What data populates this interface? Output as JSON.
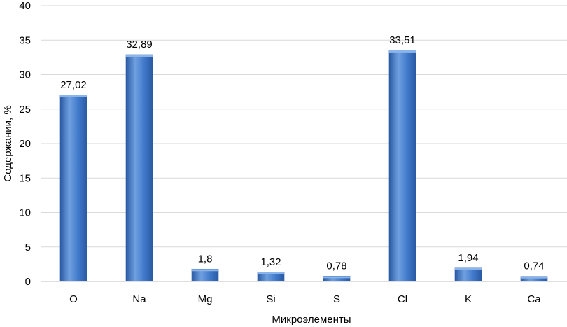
{
  "chart_data": {
    "type": "bar",
    "categories": [
      "O",
      "Na",
      "Mg",
      "Si",
      "S",
      "Cl",
      "K",
      "Ca"
    ],
    "values": [
      27.02,
      32.89,
      1.8,
      1.32,
      0.78,
      33.51,
      1.94,
      0.74
    ],
    "data_labels": [
      "27,02",
      "32,89",
      "1,8",
      "1,32",
      "0,78",
      "33,51",
      "1,94",
      "0,74"
    ],
    "y_ticks": [
      "0",
      "5",
      "10",
      "15",
      "20",
      "25",
      "30",
      "35",
      "40"
    ],
    "xlabel": "Микроэлементы",
    "ylabel": "Содержании, %",
    "ylim": [
      0,
      40
    ],
    "grid": true,
    "colors": {
      "bar": "#3f78c9",
      "bar_light": "#6fa0e0",
      "bar_dark": "#2a5aa3",
      "grid": "#d9d9d9"
    }
  }
}
